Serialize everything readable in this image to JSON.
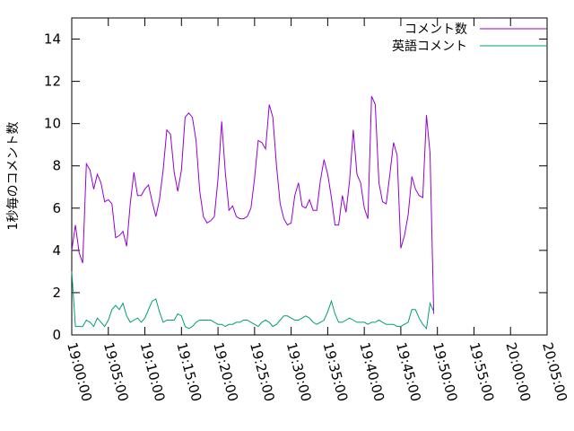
{
  "chart_data": {
    "type": "line",
    "ylabel": "1秒毎のコメント数",
    "xlabel": "",
    "ylim": [
      0,
      15
    ],
    "yticks": [
      0,
      2,
      4,
      6,
      8,
      10,
      12,
      14
    ],
    "xlim": [
      "19:00:00",
      "20:05:00"
    ],
    "xticks": [
      "19:00:00",
      "19:05:00",
      "19:10:00",
      "19:15:00",
      "19:20:00",
      "19:25:00",
      "19:30:00",
      "19:35:00",
      "19:40:00",
      "19:45:00",
      "19:50:00",
      "19:55:00",
      "20:00:00",
      "20:05:00"
    ],
    "legend_position": "top-right",
    "grid": false,
    "series": [
      {
        "name": "コメント数",
        "color": "#9400d3",
        "points": [
          [
            "19:00:00",
            4.0
          ],
          [
            "19:00:30",
            5.2
          ],
          [
            "19:01:00",
            3.9
          ],
          [
            "19:01:30",
            3.4
          ],
          [
            "19:02:00",
            8.1
          ],
          [
            "19:02:30",
            7.8
          ],
          [
            "19:03:00",
            6.9
          ],
          [
            "19:03:30",
            7.6
          ],
          [
            "19:04:00",
            7.2
          ],
          [
            "19:04:30",
            6.3
          ],
          [
            "19:05:00",
            6.4
          ],
          [
            "19:05:30",
            6.2
          ],
          [
            "19:06:00",
            4.6
          ],
          [
            "19:06:30",
            4.7
          ],
          [
            "19:07:00",
            4.9
          ],
          [
            "19:07:30",
            4.2
          ],
          [
            "19:08:00",
            6.2
          ],
          [
            "19:08:30",
            7.7
          ],
          [
            "19:09:00",
            6.6
          ],
          [
            "19:09:30",
            6.6
          ],
          [
            "19:10:00",
            6.9
          ],
          [
            "19:10:30",
            7.1
          ],
          [
            "19:11:00",
            6.3
          ],
          [
            "19:11:30",
            5.6
          ],
          [
            "19:12:00",
            6.4
          ],
          [
            "19:12:30",
            7.8
          ],
          [
            "19:13:00",
            9.7
          ],
          [
            "19:13:30",
            9.5
          ],
          [
            "19:14:00",
            7.7
          ],
          [
            "19:14:30",
            6.8
          ],
          [
            "19:15:00",
            7.8
          ],
          [
            "19:15:30",
            10.3
          ],
          [
            "19:16:00",
            10.5
          ],
          [
            "19:16:30",
            10.3
          ],
          [
            "19:17:00",
            9.2
          ],
          [
            "19:17:30",
            6.8
          ],
          [
            "19:18:00",
            5.6
          ],
          [
            "19:18:30",
            5.3
          ],
          [
            "19:19:00",
            5.4
          ],
          [
            "19:19:30",
            5.6
          ],
          [
            "19:20:00",
            7.4
          ],
          [
            "19:20:30",
            10.1
          ],
          [
            "19:21:00",
            7.7
          ],
          [
            "19:21:30",
            5.9
          ],
          [
            "19:22:00",
            6.1
          ],
          [
            "19:22:30",
            5.6
          ],
          [
            "19:23:00",
            5.5
          ],
          [
            "19:23:30",
            5.5
          ],
          [
            "19:24:00",
            5.6
          ],
          [
            "19:24:30",
            6.0
          ],
          [
            "19:25:00",
            7.4
          ],
          [
            "19:25:30",
            9.2
          ],
          [
            "19:26:00",
            9.1
          ],
          [
            "19:26:30",
            8.8
          ],
          [
            "19:27:00",
            10.9
          ],
          [
            "19:27:30",
            10.3
          ],
          [
            "19:28:00",
            8.0
          ],
          [
            "19:28:30",
            6.2
          ],
          [
            "19:29:00",
            5.5
          ],
          [
            "19:29:30",
            5.2
          ],
          [
            "19:30:00",
            5.3
          ],
          [
            "19:30:30",
            6.6
          ],
          [
            "19:31:00",
            7.2
          ],
          [
            "19:31:30",
            6.1
          ],
          [
            "19:32:00",
            6.0
          ],
          [
            "19:32:30",
            6.4
          ],
          [
            "19:33:00",
            5.9
          ],
          [
            "19:33:30",
            5.9
          ],
          [
            "19:34:00",
            7.3
          ],
          [
            "19:34:30",
            8.3
          ],
          [
            "19:35:00",
            7.6
          ],
          [
            "19:35:30",
            6.5
          ],
          [
            "19:36:00",
            5.2
          ],
          [
            "19:36:30",
            5.2
          ],
          [
            "19:37:00",
            6.6
          ],
          [
            "19:37:30",
            5.8
          ],
          [
            "19:38:00",
            7.3
          ],
          [
            "19:38:30",
            9.7
          ],
          [
            "19:39:00",
            7.6
          ],
          [
            "19:39:30",
            7.2
          ],
          [
            "19:40:00",
            6.0
          ],
          [
            "19:40:30",
            5.5
          ],
          [
            "19:41:00",
            11.3
          ],
          [
            "19:41:30",
            10.9
          ],
          [
            "19:42:00",
            7.2
          ],
          [
            "19:42:30",
            6.3
          ],
          [
            "19:43:00",
            6.2
          ],
          [
            "19:43:30",
            7.6
          ],
          [
            "19:44:00",
            9.1
          ],
          [
            "19:44:30",
            8.5
          ],
          [
            "19:45:00",
            4.1
          ],
          [
            "19:45:30",
            4.7
          ],
          [
            "19:46:00",
            5.7
          ],
          [
            "19:46:30",
            7.5
          ],
          [
            "19:47:00",
            6.9
          ],
          [
            "19:47:30",
            6.6
          ],
          [
            "19:48:00",
            6.5
          ],
          [
            "19:48:30",
            10.4
          ],
          [
            "19:49:00",
            8.6
          ],
          [
            "19:49:30",
            1.0
          ]
        ]
      },
      {
        "name": "英語コメント",
        "color": "#009e73",
        "points": [
          [
            "19:00:00",
            3.0
          ],
          [
            "19:00:30",
            0.4
          ],
          [
            "19:01:00",
            0.4
          ],
          [
            "19:01:30",
            0.4
          ],
          [
            "19:02:00",
            0.7
          ],
          [
            "19:02:30",
            0.6
          ],
          [
            "19:03:00",
            0.4
          ],
          [
            "19:03:30",
            0.8
          ],
          [
            "19:04:00",
            0.6
          ],
          [
            "19:04:30",
            0.4
          ],
          [
            "19:05:00",
            0.7
          ],
          [
            "19:05:30",
            1.2
          ],
          [
            "19:06:00",
            1.4
          ],
          [
            "19:06:30",
            1.2
          ],
          [
            "19:07:00",
            1.5
          ],
          [
            "19:07:30",
            0.9
          ],
          [
            "19:08:00",
            0.6
          ],
          [
            "19:08:30",
            0.7
          ],
          [
            "19:09:00",
            0.8
          ],
          [
            "19:09:30",
            0.6
          ],
          [
            "19:10:00",
            0.8
          ],
          [
            "19:10:30",
            1.2
          ],
          [
            "19:11:00",
            1.6
          ],
          [
            "19:11:30",
            1.7
          ],
          [
            "19:12:00",
            1.1
          ],
          [
            "19:12:30",
            0.6
          ],
          [
            "19:13:00",
            0.7
          ],
          [
            "19:13:30",
            0.7
          ],
          [
            "19:14:00",
            0.7
          ],
          [
            "19:14:30",
            1.0
          ],
          [
            "19:15:00",
            0.9
          ],
          [
            "19:15:30",
            0.4
          ],
          [
            "19:16:00",
            0.3
          ],
          [
            "19:16:30",
            0.4
          ],
          [
            "19:17:00",
            0.6
          ],
          [
            "19:17:30",
            0.7
          ],
          [
            "19:18:00",
            0.7
          ],
          [
            "19:18:30",
            0.7
          ],
          [
            "19:19:00",
            0.7
          ],
          [
            "19:19:30",
            0.6
          ],
          [
            "19:20:00",
            0.5
          ],
          [
            "19:20:30",
            0.5
          ],
          [
            "19:21:00",
            0.4
          ],
          [
            "19:21:30",
            0.5
          ],
          [
            "19:22:00",
            0.5
          ],
          [
            "19:22:30",
            0.6
          ],
          [
            "19:23:00",
            0.6
          ],
          [
            "19:23:30",
            0.7
          ],
          [
            "19:24:00",
            0.7
          ],
          [
            "19:24:30",
            0.6
          ],
          [
            "19:25:00",
            0.5
          ],
          [
            "19:25:30",
            0.4
          ],
          [
            "19:26:00",
            0.6
          ],
          [
            "19:26:30",
            0.7
          ],
          [
            "19:27:00",
            0.6
          ],
          [
            "19:27:30",
            0.4
          ],
          [
            "19:28:00",
            0.5
          ],
          [
            "19:28:30",
            0.7
          ],
          [
            "19:29:00",
            0.9
          ],
          [
            "19:29:30",
            0.9
          ],
          [
            "19:30:00",
            0.8
          ],
          [
            "19:30:30",
            0.7
          ],
          [
            "19:31:00",
            0.7
          ],
          [
            "19:31:30",
            0.8
          ],
          [
            "19:32:00",
            0.9
          ],
          [
            "19:32:30",
            0.8
          ],
          [
            "19:33:00",
            0.6
          ],
          [
            "19:33:30",
            0.5
          ],
          [
            "19:34:00",
            0.6
          ],
          [
            "19:34:30",
            0.7
          ],
          [
            "19:35:00",
            1.1
          ],
          [
            "19:35:30",
            1.6
          ],
          [
            "19:36:00",
            1.0
          ],
          [
            "19:36:30",
            0.6
          ],
          [
            "19:37:00",
            0.6
          ],
          [
            "19:37:30",
            0.7
          ],
          [
            "19:38:00",
            0.8
          ],
          [
            "19:38:30",
            0.7
          ],
          [
            "19:39:00",
            0.6
          ],
          [
            "19:39:30",
            0.6
          ],
          [
            "19:40:00",
            0.6
          ],
          [
            "19:40:30",
            0.5
          ],
          [
            "19:41:00",
            0.6
          ],
          [
            "19:41:30",
            0.6
          ],
          [
            "19:42:00",
            0.7
          ],
          [
            "19:42:30",
            0.6
          ],
          [
            "19:43:00",
            0.5
          ],
          [
            "19:43:30",
            0.5
          ],
          [
            "19:44:00",
            0.5
          ],
          [
            "19:44:30",
            0.4
          ],
          [
            "19:45:00",
            0.4
          ],
          [
            "19:45:30",
            0.5
          ],
          [
            "19:46:00",
            0.6
          ],
          [
            "19:46:30",
            1.2
          ],
          [
            "19:47:00",
            1.2
          ],
          [
            "19:47:30",
            0.8
          ],
          [
            "19:48:00",
            0.5
          ],
          [
            "19:48:30",
            0.3
          ],
          [
            "19:49:00",
            1.5
          ],
          [
            "19:49:30",
            1.1
          ]
        ]
      }
    ]
  }
}
